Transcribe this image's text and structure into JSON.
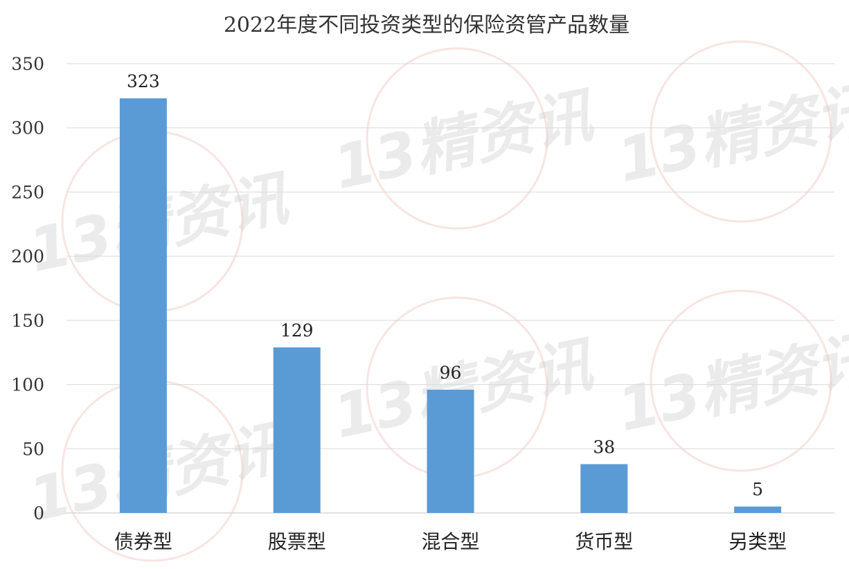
{
  "chart_data": {
    "type": "bar",
    "title": "2022年度不同投资类型的保险资管产品数量",
    "categories": [
      "债券型",
      "股票型",
      "混合型",
      "货币型",
      "另类型"
    ],
    "values": [
      323,
      129,
      96,
      38,
      5
    ],
    "ylim": [
      0,
      350
    ],
    "yticks": [
      0,
      50,
      100,
      150,
      200,
      250,
      300,
      350
    ],
    "grid": true,
    "bar_color": "#5b9bd5",
    "data_labels": true
  },
  "watermark": {
    "text": "13精资讯"
  }
}
